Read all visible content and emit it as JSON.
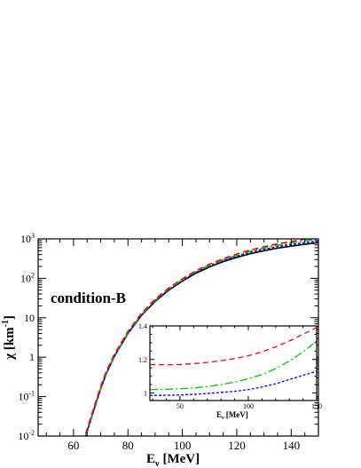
{
  "chart_data": [
    {
      "type": "line",
      "title": "",
      "annotation": "condition-B",
      "xlabel": "E",
      "xlabel_sub": "ν",
      "xlabel_unit": "[MeV]",
      "ylabel": "χ [km",
      "ylabel_sup": "-1",
      "ylabel_close": "]",
      "xlim": [
        47,
        150
      ],
      "ylim": [
        0.01,
        1000
      ],
      "yscale": "log",
      "grid": false,
      "x_ticks": [
        60,
        80,
        100,
        120,
        140
      ],
      "x_tick_labels": [
        "60",
        "80",
        "100",
        "120",
        "140"
      ],
      "y_ticks": [
        0.01,
        0.1,
        1,
        10,
        100,
        1000
      ],
      "y_tick_labels": [
        {
          "base": "10",
          "exp": "-2"
        },
        {
          "base": "10",
          "exp": "-1"
        },
        {
          "base": "1",
          "exp": ""
        },
        {
          "base": "10",
          "exp": ""
        },
        {
          "base": "10",
          "exp": "2"
        },
        {
          "base": "10",
          "exp": "3"
        }
      ],
      "series": [
        {
          "color": "#000000",
          "dash": "solid",
          "x": [
            64.5,
            66,
            68,
            70,
            72,
            75,
            80,
            85,
            90,
            95,
            100,
            105,
            110,
            115,
            120,
            125,
            130,
            135,
            140,
            145,
            150
          ],
          "y": [
            0.01,
            0.022,
            0.06,
            0.16,
            0.38,
            1.05,
            4.0,
            11.5,
            26,
            50,
            85,
            135,
            195,
            265,
            340,
            420,
            500,
            580,
            655,
            730,
            800
          ]
        },
        {
          "color": "#0000ff",
          "dash": "3,2",
          "x": [
            64.5,
            66,
            68,
            70,
            72,
            75,
            80,
            85,
            90,
            95,
            100,
            105,
            110,
            115,
            120,
            125,
            130,
            135,
            140,
            145,
            150
          ],
          "y": [
            0.0098,
            0.0215,
            0.059,
            0.158,
            0.375,
            1.04,
            4.0,
            11.6,
            26.5,
            51.5,
            88,
            142,
            206,
            282,
            365,
            455,
            545,
            635,
            720,
            805,
            890
          ]
        },
        {
          "color": "#00cc00",
          "dash": "9,3,2,3",
          "x": [
            64.5,
            66,
            68,
            70,
            72,
            75,
            80,
            85,
            90,
            95,
            100,
            105,
            110,
            115,
            120,
            125,
            130,
            135,
            140,
            145,
            150
          ],
          "y": [
            0.0105,
            0.023,
            0.063,
            0.168,
            0.4,
            1.1,
            4.2,
            12.2,
            27.8,
            54,
            92,
            148,
            215,
            295,
            385,
            485,
            585,
            690,
            800,
            900,
            1000
          ]
        },
        {
          "color": "#ff0000",
          "dash": "7,4",
          "x": [
            64.5,
            66,
            68,
            70,
            72,
            75,
            80,
            85,
            90,
            95,
            100,
            105,
            110,
            115,
            120,
            125,
            130,
            135,
            140,
            145,
            150
          ],
          "y": [
            0.0115,
            0.025,
            0.068,
            0.18,
            0.43,
            1.18,
            4.5,
            13,
            29.5,
            57,
            97,
            156,
            228,
            314,
            412,
            520,
            630,
            745,
            860,
            980,
            1100
          ]
        }
      ]
    },
    {
      "type": "line",
      "title": "",
      "xlabel": "E",
      "xlabel_sub": "ν",
      "xlabel_unit": "[MeV]",
      "ylabel": "",
      "xlim": [
        28,
        150
      ],
      "ylim": [
        0.955,
        1.4
      ],
      "grid": false,
      "x_ticks": [
        50,
        100,
        150
      ],
      "x_tick_labels": [
        "50",
        "100",
        "150"
      ],
      "y_ticks": [
        1.0,
        1.2,
        1.4
      ],
      "y_tick_labels": [
        "1",
        "1.2",
        "1.4"
      ],
      "series": [
        {
          "color": "#ff0000",
          "dash": "6,4",
          "x": [
            28,
            40,
            50,
            60,
            70,
            80,
            90,
            100,
            110,
            120,
            130,
            140,
            150
          ],
          "y": [
            1.17,
            1.168,
            1.17,
            1.175,
            1.182,
            1.192,
            1.205,
            1.222,
            1.245,
            1.275,
            1.31,
            1.35,
            1.39
          ]
        },
        {
          "color": "#00cc00",
          "dash": "9,3,2,3",
          "x": [
            28,
            40,
            50,
            60,
            70,
            80,
            90,
            100,
            110,
            120,
            130,
            140,
            150
          ],
          "y": [
            1.02,
            1.022,
            1.025,
            1.03,
            1.038,
            1.05,
            1.065,
            1.085,
            1.11,
            1.145,
            1.19,
            1.245,
            1.31
          ]
        },
        {
          "color": "#0000ff",
          "dash": "3,2",
          "x": [
            28,
            40,
            50,
            60,
            70,
            80,
            90,
            100,
            110,
            120,
            130,
            140,
            150
          ],
          "y": [
            0.985,
            0.986,
            0.988,
            0.992,
            0.997,
            1.003,
            1.01,
            1.02,
            1.035,
            1.055,
            1.08,
            1.105,
            1.13
          ]
        }
      ]
    }
  ]
}
